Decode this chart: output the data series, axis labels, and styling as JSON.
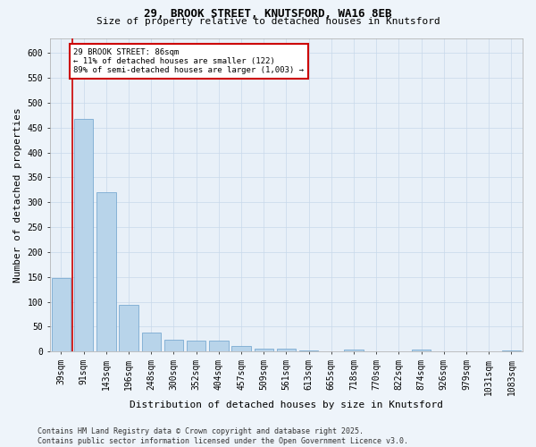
{
  "title1": "29, BROOK STREET, KNUTSFORD, WA16 8EB",
  "title2": "Size of property relative to detached houses in Knutsford",
  "xlabel": "Distribution of detached houses by size in Knutsford",
  "ylabel": "Number of detached properties",
  "categories": [
    "39sqm",
    "91sqm",
    "143sqm",
    "196sqm",
    "248sqm",
    "300sqm",
    "352sqm",
    "404sqm",
    "457sqm",
    "509sqm",
    "561sqm",
    "613sqm",
    "665sqm",
    "718sqm",
    "770sqm",
    "822sqm",
    "874sqm",
    "926sqm",
    "979sqm",
    "1031sqm",
    "1083sqm"
  ],
  "values": [
    148,
    468,
    320,
    93,
    38,
    23,
    21,
    21,
    11,
    6,
    5,
    3,
    0,
    4,
    0,
    0,
    4,
    0,
    0,
    0,
    3
  ],
  "bar_color": "#b8d4ea",
  "bar_edge_color": "#6aa0cc",
  "vline_color": "#cc0000",
  "vline_x": 0.5,
  "annotation_text": "29 BROOK STREET: 86sqm\n← 11% of detached houses are smaller (122)\n89% of semi-detached houses are larger (1,003) →",
  "annotation_box_facecolor": "#ffffff",
  "annotation_box_edgecolor": "#cc0000",
  "footer": "Contains HM Land Registry data © Crown copyright and database right 2025.\nContains public sector information licensed under the Open Government Licence v3.0.",
  "ylim_max": 630,
  "yticks": [
    0,
    50,
    100,
    150,
    200,
    250,
    300,
    350,
    400,
    450,
    500,
    550,
    600
  ],
  "grid_color": "#c8d8ea",
  "bg_color": "#e8f0f8",
  "fig_bg_color": "#eef4fa",
  "title1_fontsize": 9,
  "title2_fontsize": 8,
  "ylabel_fontsize": 8,
  "xlabel_fontsize": 8,
  "tick_fontsize": 7,
  "annot_fontsize": 6.5,
  "footer_fontsize": 6
}
